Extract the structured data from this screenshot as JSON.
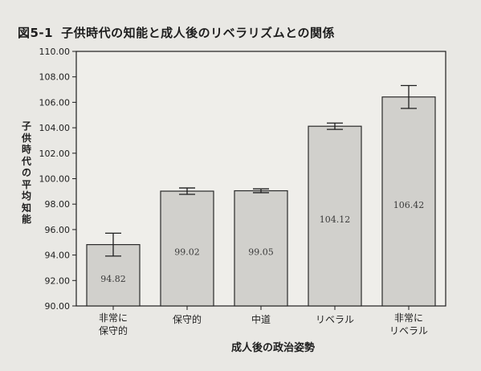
{
  "chart_data": {
    "type": "bar",
    "title_number": "図5-1",
    "title": "子供時代の知能と成人後のリベラリズムとの関係",
    "xlabel": "成人後の政治姿勢",
    "ylabel": "子供時代の平均知能",
    "ylim": [
      90.0,
      110.0
    ],
    "yticks": [
      "110.00",
      "108.00",
      "106.00",
      "104.00",
      "102.00",
      "100.00",
      "98.00",
      "96.00",
      "94.00",
      "92.00",
      "90.00"
    ],
    "categories": [
      [
        "非常に",
        "保守的"
      ],
      [
        "保守的"
      ],
      [
        "中道"
      ],
      [
        "リベラル"
      ],
      [
        "非常に",
        "リベラル"
      ]
    ],
    "values": [
      94.82,
      99.02,
      99.05,
      104.12,
      106.42
    ],
    "value_labels": [
      "94.82",
      "99.02",
      "99.05",
      "104.12",
      "106.42"
    ],
    "error": [
      0.9,
      0.25,
      0.15,
      0.25,
      0.9
    ],
    "grid": false,
    "colors": {
      "bar": "#d1d0cc",
      "bar_edge": "#2a2a2a",
      "plot_bg": "#efeeea",
      "ink": "#1e1e1e"
    }
  }
}
